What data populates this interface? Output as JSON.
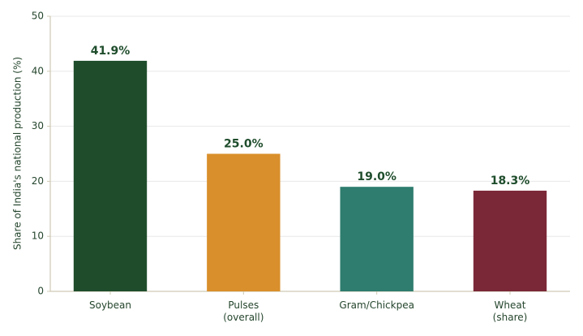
{
  "chart_data": {
    "type": "bar",
    "y_label": "Share of India's national production (%)",
    "categories": [
      "Soybean",
      "Pulses\n(overall)",
      "Gram/Chickpea",
      "Wheat\n(share)"
    ],
    "values": [
      41.9,
      25.0,
      19.0,
      18.3
    ],
    "value_labels": [
      "41.9%",
      "25.0%",
      "19.0%",
      "18.3%"
    ],
    "colors": [
      "#1f4d2c",
      "#d98f2b",
      "#2e7d6e",
      "#7a2838"
    ],
    "ylim": [
      0,
      50
    ],
    "yticks": [
      0,
      10,
      20,
      30,
      40,
      50
    ],
    "grid": true
  }
}
